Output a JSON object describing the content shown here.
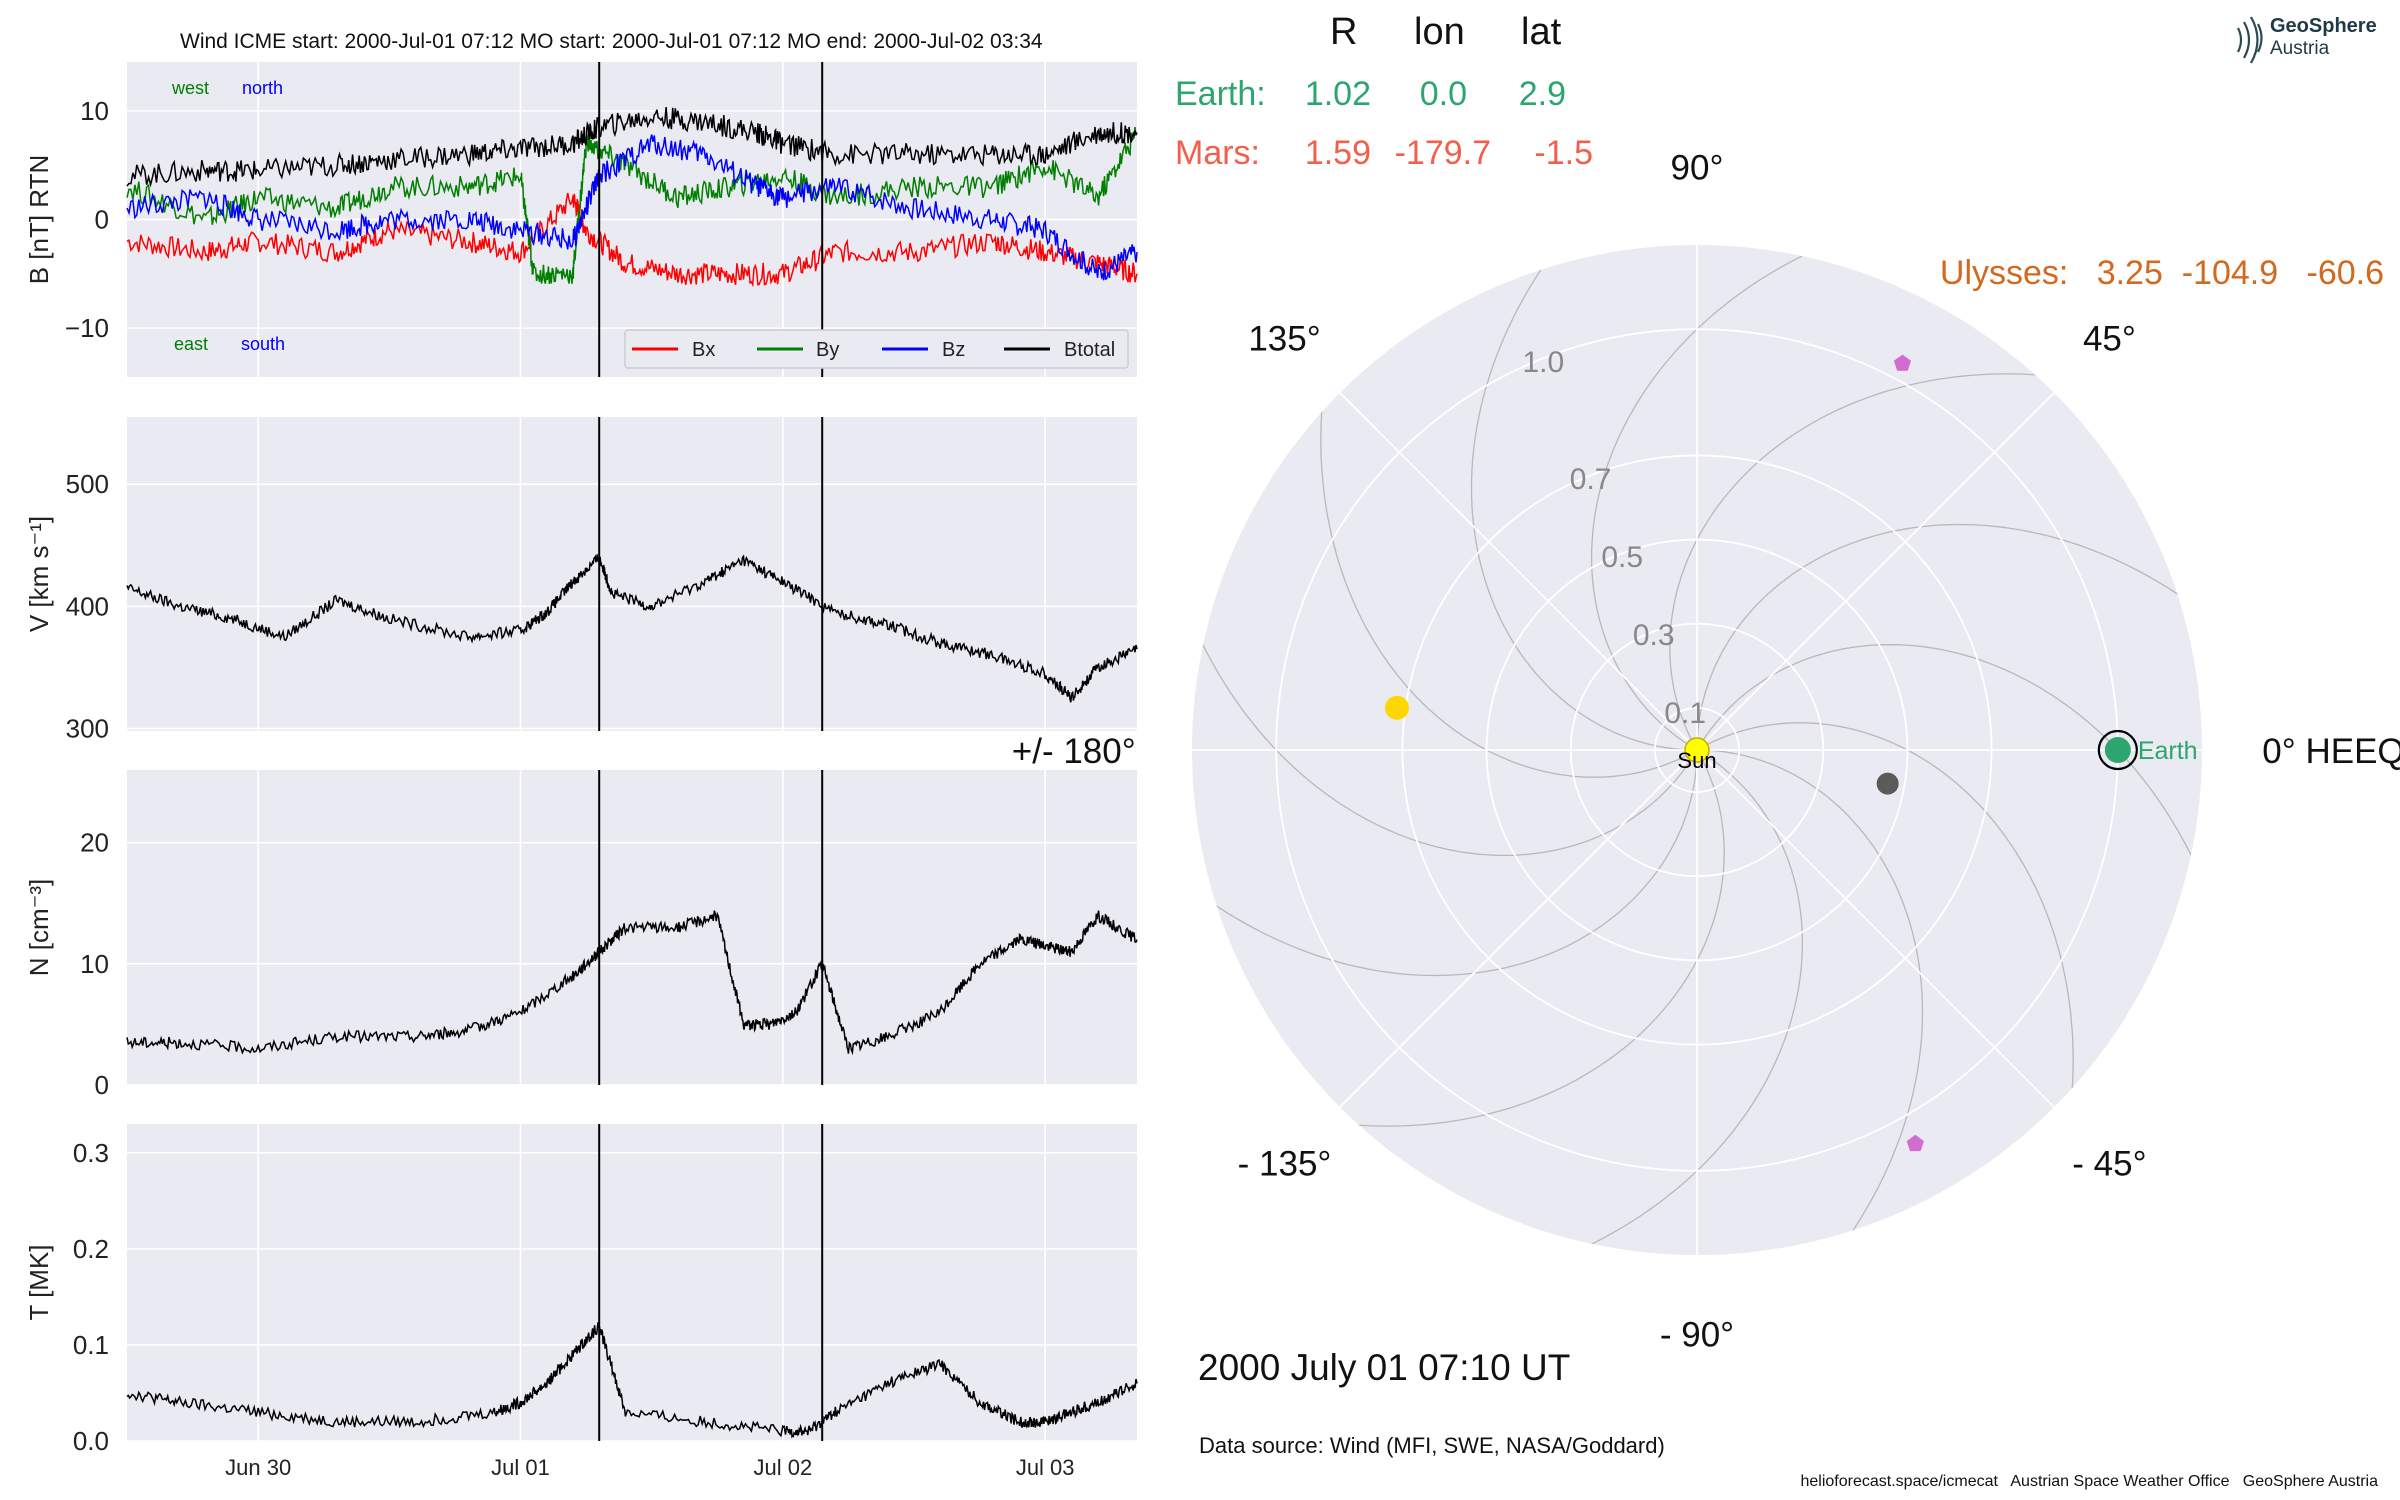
{
  "header": {
    "title": "Wind    ICME start: 2000-Jul-01 07:12   MO start: 2000-Jul-01 07:12   MO end: 2000-Jul-02 03:34"
  },
  "logo": {
    "line1": "GeoSphere",
    "line2": "Austria"
  },
  "colors": {
    "bx": "#ff0000",
    "by": "#007f00",
    "bz": "#0000ff",
    "btotal": "#000000",
    "panel_bg": "#eaeaf2",
    "earth": "#2ca56e",
    "mars": "#f25f4c",
    "ulysses": "#d2691e",
    "sun": "#ffff00",
    "venus": "#ffd700",
    "mercury": "#5a5a5a",
    "stereo": "#d26bd2"
  },
  "positions_table": {
    "headers": [
      "R",
      "lon",
      "lat"
    ],
    "rows": [
      {
        "label": "Earth:",
        "R": "1.02",
        "lon": "0.0",
        "lat": "2.9"
      },
      {
        "label": "Mars:",
        "R": "1.59",
        "lon": "-179.7",
        "lat": "-1.5"
      }
    ],
    "ulysses": "Ulysses:   3.25  -104.9   -60.6"
  },
  "time_label": "2000 July 01  07:10 UT",
  "data_source": "Data source: Wind (MFI, SWE, NASA/Goddard)",
  "footer": "helioforecast.space/icmecat   Austrian Space Weather Office   GeoSphere Austria",
  "chart_data": [
    {
      "type": "line",
      "ylabel": "B [nT] RTN",
      "ylim": [
        -14.5,
        14.5
      ],
      "yticks": [
        "10",
        "0",
        "−10"
      ],
      "ytick_values": [
        10,
        0,
        -10
      ],
      "xlim_days": [
        -0.5,
        3.35
      ],
      "xtick_labels": [],
      "annotations": [
        "west",
        "north",
        "east",
        "south"
      ],
      "legend": [
        "Bx",
        "By",
        "Bz",
        "Btotal"
      ],
      "legend_location": "lower right",
      "event_lines": [
        "2000-Jul-01 07:12",
        "2000-Jul-02 03:34"
      ],
      "series": [
        {
          "name": "Bx",
          "x": [
            -0.5,
            -0.2,
            0.0,
            0.3,
            0.5,
            0.8,
            1.0,
            1.2,
            1.25,
            1.4,
            1.6,
            1.8,
            2.0,
            2.2,
            2.5,
            2.8,
            3.0,
            3.2,
            3.35
          ],
          "y": [
            -2,
            -3,
            -2,
            -3,
            -1,
            -2,
            -3,
            2,
            -1,
            -4,
            -5,
            -5,
            -5,
            -3,
            -3,
            -2,
            -3,
            -4,
            -5
          ]
        },
        {
          "name": "By",
          "x": [
            -0.5,
            -0.2,
            0.0,
            0.3,
            0.5,
            0.8,
            1.0,
            1.05,
            1.2,
            1.25,
            1.4,
            1.6,
            1.8,
            2.0,
            2.2,
            2.5,
            2.8,
            3.0,
            3.2,
            3.35
          ],
          "y": [
            3,
            0,
            2,
            1,
            3,
            3,
            4,
            -5,
            -5,
            7,
            5,
            2,
            3,
            4,
            2,
            3,
            3,
            5,
            2,
            8
          ]
        },
        {
          "name": "Bz",
          "x": [
            -0.5,
            -0.2,
            0.0,
            0.3,
            0.5,
            0.8,
            1.0,
            1.2,
            1.3,
            1.5,
            1.7,
            1.9,
            2.0,
            2.2,
            2.5,
            2.8,
            3.0,
            3.2,
            3.35
          ],
          "y": [
            1,
            2,
            0,
            -1,
            0,
            0,
            -1,
            -2,
            4,
            7,
            6,
            3,
            2,
            3,
            1,
            0,
            -1,
            -5,
            -3
          ]
        },
        {
          "name": "Btotal",
          "x": [
            -0.5,
            -0.2,
            0.0,
            0.3,
            0.5,
            0.8,
            1.0,
            1.2,
            1.3,
            1.5,
            1.7,
            1.9,
            2.0,
            2.2,
            2.5,
            2.8,
            3.0,
            3.2,
            3.35
          ],
          "y": [
            4,
            4.5,
            4.5,
            5,
            5.5,
            6,
            6.5,
            7,
            8.5,
            9.5,
            9,
            8,
            7,
            6,
            6,
            6,
            6,
            8,
            8
          ]
        }
      ]
    },
    {
      "type": "line",
      "ylabel": "V [km s⁻¹]",
      "ylim": [
        298,
        555
      ],
      "yticks": [
        "500",
        "400",
        "300"
      ],
      "ytick_values": [
        500,
        400,
        300
      ],
      "xlim_days": [
        -0.5,
        3.35
      ],
      "xtick_labels": [],
      "event_lines": [
        "2000-Jul-01 07:12",
        "2000-Jul-02 03:34"
      ],
      "series": [
        {
          "name": "V",
          "x": [
            -0.5,
            -0.3,
            -0.1,
            0.1,
            0.3,
            0.5,
            0.8,
            1.0,
            1.1,
            1.2,
            1.3,
            1.35,
            1.5,
            1.7,
            1.85,
            2.0,
            2.2,
            2.4,
            2.6,
            2.8,
            3.0,
            3.1,
            3.2,
            3.35
          ],
          "y": [
            415,
            400,
            390,
            375,
            405,
            390,
            375,
            380,
            395,
            420,
            440,
            410,
            400,
            420,
            438,
            420,
            395,
            385,
            370,
            360,
            345,
            325,
            350,
            365
          ]
        }
      ]
    },
    {
      "type": "line",
      "ylabel": "N [cm⁻³]",
      "ylim": [
        0,
        26
      ],
      "yticks": [
        "20",
        "10",
        "0"
      ],
      "ytick_values": [
        20,
        10,
        0
      ],
      "xlim_days": [
        -0.5,
        3.35
      ],
      "xtick_labels": [],
      "event_lines": [
        "2000-Jul-01 07:12",
        "2000-Jul-02 03:34"
      ],
      "series": [
        {
          "name": "N",
          "x": [
            -0.5,
            -0.3,
            0.0,
            0.3,
            0.6,
            0.8,
            1.0,
            1.2,
            1.3,
            1.4,
            1.6,
            1.75,
            1.85,
            1.95,
            2.05,
            2.15,
            2.25,
            2.4,
            2.6,
            2.75,
            2.9,
            3.0,
            3.1,
            3.2,
            3.35
          ],
          "y": [
            3.5,
            3.5,
            3,
            4,
            4,
            4.5,
            6,
            9,
            11,
            13,
            13,
            14,
            5,
            5,
            6,
            10,
            3,
            4,
            6,
            10,
            12,
            11.5,
            11,
            14,
            12
          ]
        }
      ]
    },
    {
      "type": "line",
      "ylabel": "T [MK]",
      "ylim": [
        0,
        0.33
      ],
      "yticks": [
        "0.3",
        "0.2",
        "0.1",
        "0.0"
      ],
      "ytick_values": [
        0.3,
        0.2,
        0.1,
        0.0
      ],
      "xlim_days": [
        -0.5,
        3.35
      ],
      "xtick_labels": [
        "Jun 30",
        "Jul 01",
        "Jul 02",
        "Jul 03"
      ],
      "xtick_values": [
        0,
        1,
        2,
        3
      ],
      "event_lines": [
        "2000-Jul-01 07:12",
        "2000-Jul-02 03:34"
      ],
      "series": [
        {
          "name": "T",
          "x": [
            -0.5,
            -0.3,
            0.0,
            0.3,
            0.6,
            0.9,
            1.0,
            1.1,
            1.2,
            1.3,
            1.4,
            1.7,
            2.0,
            2.1,
            2.2,
            2.4,
            2.6,
            2.75,
            2.9,
            3.0,
            3.1,
            3.2,
            3.35
          ],
          "y": [
            0.05,
            0.04,
            0.03,
            0.02,
            0.02,
            0.03,
            0.04,
            0.06,
            0.09,
            0.12,
            0.03,
            0.02,
            0.01,
            0.01,
            0.03,
            0.06,
            0.08,
            0.04,
            0.02,
            0.02,
            0.03,
            0.04,
            0.06
          ]
        }
      ]
    },
    {
      "type": "scatter",
      "title": "polar",
      "angle_labels": [
        "90°",
        "45°",
        "0° HEEQ",
        "- 45°",
        "- 90°",
        "- 135°",
        "+/- 180°",
        "135°"
      ],
      "angle_values": [
        90,
        45,
        0,
        -45,
        -90,
        -135,
        180,
        135
      ],
      "radial_labels": [
        "1.0",
        "0.7",
        "0.5",
        "0.3",
        "0.1"
      ],
      "radial_values": [
        1.0,
        0.7,
        0.5,
        0.3,
        0.1
      ],
      "rlim": [
        0,
        1.2
      ],
      "bodies": [
        {
          "name": "Sun",
          "r": 0.0,
          "lon": 0,
          "label": "Sun"
        },
        {
          "name": "Earth",
          "r": 1.0,
          "lon": 0.0,
          "label": "Earth"
        },
        {
          "name": "Venus",
          "r": 0.72,
          "lon": 172
        },
        {
          "name": "Mercury",
          "r": 0.46,
          "lon": -10
        },
        {
          "name": "probe-north",
          "r": 1.04,
          "lon": 62
        },
        {
          "name": "probe-south",
          "r": 1.07,
          "lon": -61
        }
      ]
    }
  ]
}
